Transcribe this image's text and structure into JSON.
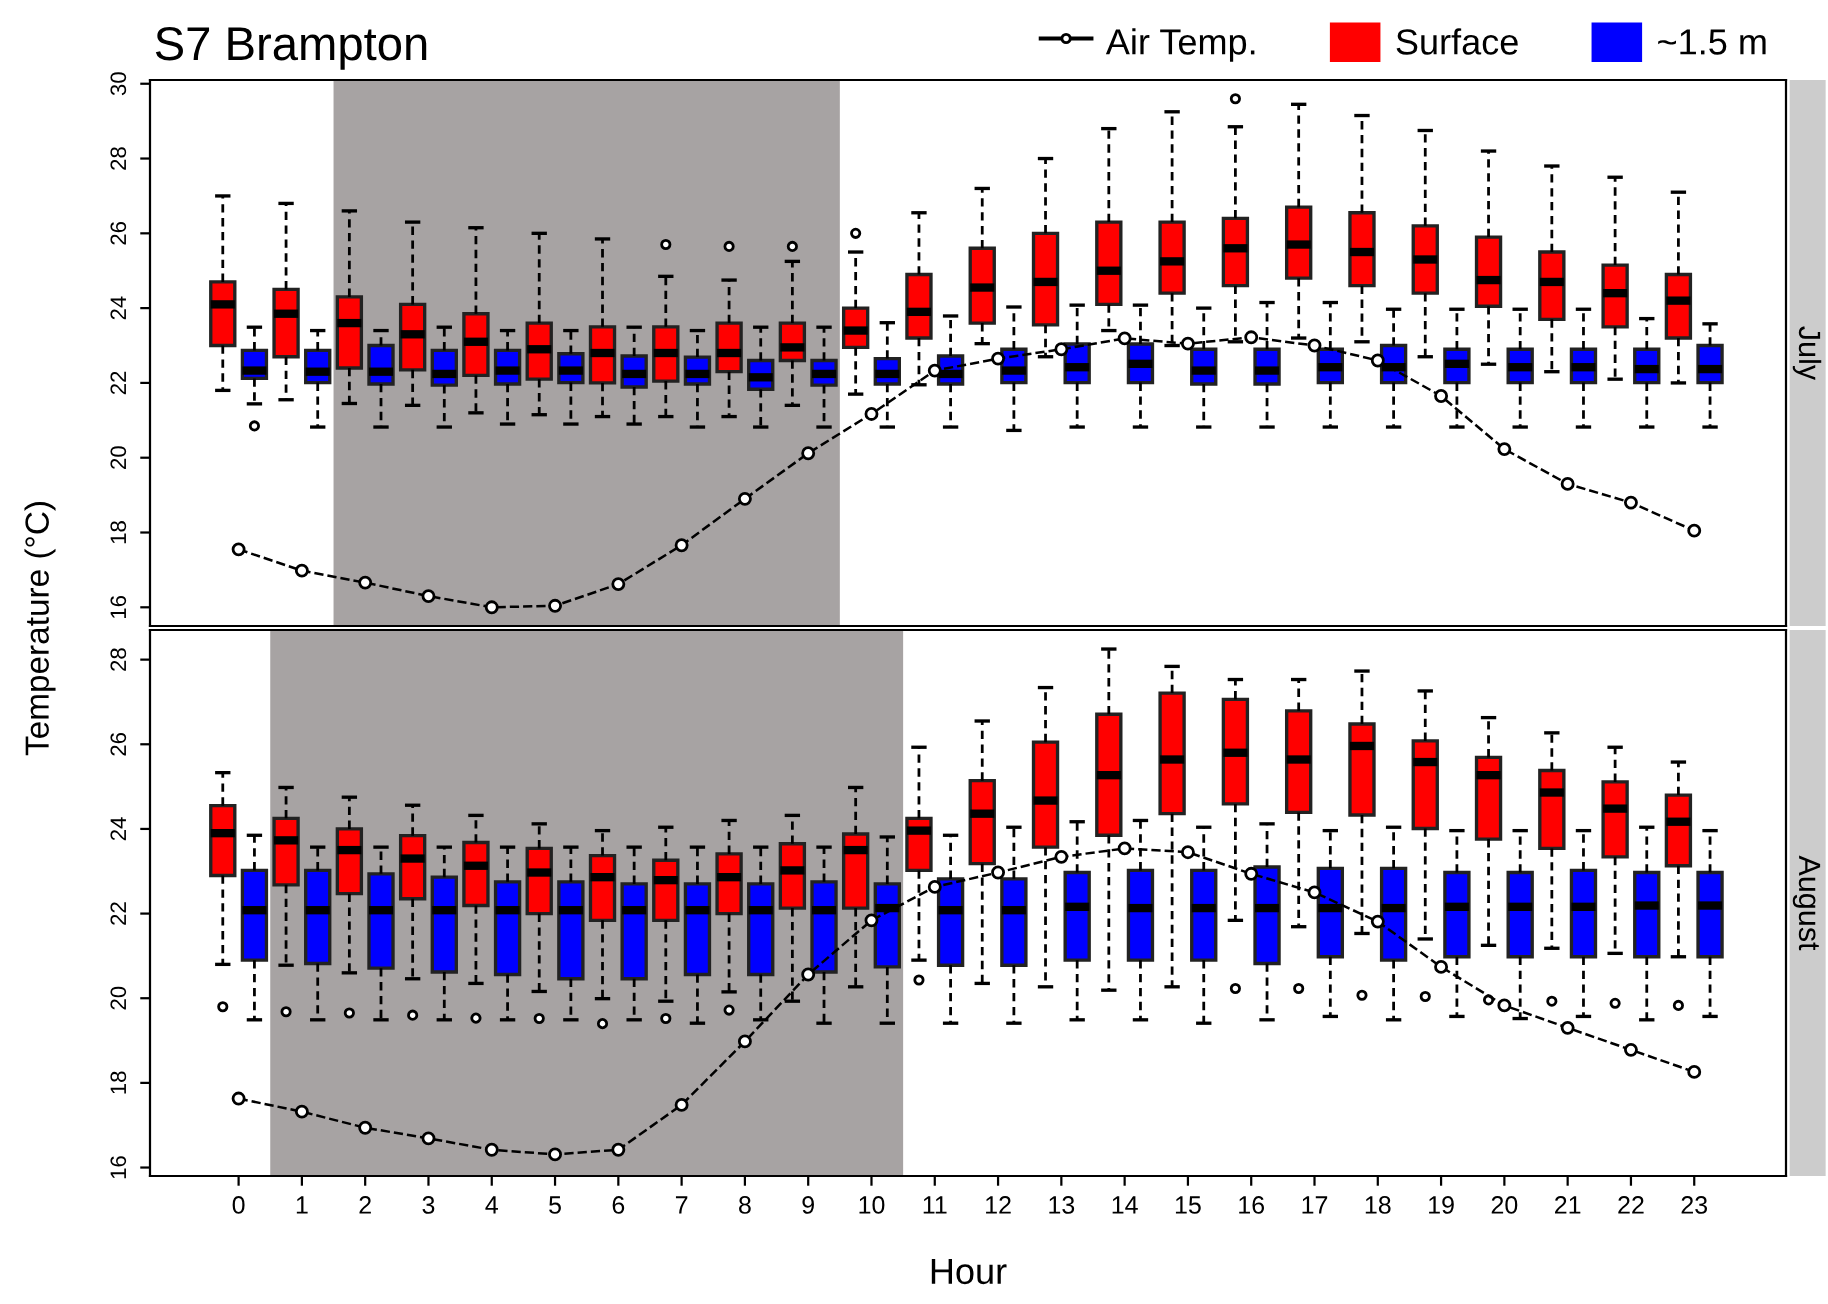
{
  "chart_data": [
    {
      "type": "box",
      "title": "S7 Brampton",
      "subtitle": "July",
      "ylabel": "Temperature (°C)",
      "x": [
        0,
        1,
        2,
        3,
        4,
        5,
        6,
        7,
        8,
        9,
        10,
        11,
        12,
        13,
        14,
        15,
        16,
        17,
        18,
        19,
        20,
        21,
        22,
        23
      ],
      "xlim": [
        -1.4,
        24.45
      ],
      "xticks": [
        0,
        1,
        2,
        3,
        4,
        5,
        6,
        7,
        8,
        9,
        10,
        11,
        12,
        13,
        14,
        15,
        16,
        17,
        18,
        19,
        20,
        21,
        22,
        23
      ],
      "ylim": [
        15.5,
        30.1
      ],
      "yticks": [
        16,
        18,
        20,
        22,
        24,
        26,
        28,
        30
      ],
      "tick_labels": "y",
      "legend": "top right",
      "bands": [
        {
          "axis": "x",
          "from": 1.5,
          "to": 9.5,
          "color": "#a7a3a3"
        }
      ],
      "series": [
        {
          "name": "Surface",
          "type": "box",
          "color": "#ff0000",
          "boxes": [
            {
              "low": 21.8,
              "q1": 23.0,
              "median": 24.1,
              "q3": 24.7,
              "high": 27.0
            },
            {
              "low": 21.55,
              "q1": 22.7,
              "median": 23.85,
              "q3": 24.5,
              "high": 26.8
            },
            {
              "low": 21.45,
              "q1": 22.4,
              "median": 23.6,
              "q3": 24.3,
              "high": 26.6
            },
            {
              "low": 21.4,
              "q1": 22.35,
              "median": 23.3,
              "q3": 24.1,
              "high": 26.3
            },
            {
              "low": 21.2,
              "q1": 22.2,
              "median": 23.1,
              "q3": 23.85,
              "high": 26.15
            },
            {
              "low": 21.15,
              "q1": 22.1,
              "median": 22.9,
              "q3": 23.6,
              "high": 26.0
            },
            {
              "low": 21.1,
              "q1": 22.0,
              "median": 22.8,
              "q3": 23.5,
              "high": 25.85
            },
            {
              "low": 21.1,
              "q1": 22.05,
              "median": 22.8,
              "q3": 23.5,
              "high": 24.85,
              "outliers": [
                25.7
              ]
            },
            {
              "low": 21.1,
              "q1": 22.3,
              "median": 22.8,
              "q3": 23.6,
              "high": 24.75,
              "outliers": [
                25.65
              ]
            },
            {
              "low": 21.4,
              "q1": 22.6,
              "median": 22.95,
              "q3": 23.6,
              "high": 25.25,
              "outliers": [
                25.65
              ]
            },
            {
              "low": 21.7,
              "q1": 22.95,
              "median": 23.4,
              "q3": 24.0,
              "high": 25.5,
              "outliers": [
                26.0
              ]
            },
            {
              "low": 21.95,
              "q1": 23.2,
              "median": 23.9,
              "q3": 24.9,
              "high": 26.55
            },
            {
              "low": 23.05,
              "q1": 23.6,
              "median": 24.55,
              "q3": 25.6,
              "high": 27.2
            },
            {
              "low": 22.7,
              "q1": 23.55,
              "median": 24.7,
              "q3": 26.0,
              "high": 28.0
            },
            {
              "low": 23.4,
              "q1": 24.1,
              "median": 25.0,
              "q3": 26.3,
              "high": 28.8
            },
            {
              "low": 23.0,
              "q1": 24.4,
              "median": 25.25,
              "q3": 26.3,
              "high": 29.25
            },
            {
              "low": 23.1,
              "q1": 24.6,
              "median": 25.6,
              "q3": 26.4,
              "high": 28.85,
              "outliers": [
                29.6
              ]
            },
            {
              "low": 23.2,
              "q1": 24.8,
              "median": 25.7,
              "q3": 26.7,
              "high": 29.45
            },
            {
              "low": 23.1,
              "q1": 24.6,
              "median": 25.5,
              "q3": 26.55,
              "high": 29.15
            },
            {
              "low": 22.7,
              "q1": 24.4,
              "median": 25.3,
              "q3": 26.2,
              "high": 28.75
            },
            {
              "low": 22.5,
              "q1": 24.05,
              "median": 24.75,
              "q3": 25.9,
              "high": 28.2
            },
            {
              "low": 22.3,
              "q1": 23.7,
              "median": 24.7,
              "q3": 25.5,
              "high": 27.8
            },
            {
              "low": 22.1,
              "q1": 23.5,
              "median": 24.4,
              "q3": 25.15,
              "high": 27.5
            },
            {
              "low": 22.0,
              "q1": 23.2,
              "median": 24.2,
              "q3": 24.9,
              "high": 27.1
            }
          ]
        },
        {
          "name": "~1.5 m",
          "type": "box",
          "color": "#0000ff",
          "boxes": [
            {
              "low": 21.44,
              "q1": 22.12,
              "median": 22.33,
              "q3": 22.87,
              "high": 23.49,
              "outliers": [
                20.85
              ]
            },
            {
              "low": 20.82,
              "q1": 22.01,
              "median": 22.3,
              "q3": 22.87,
              "high": 23.4
            },
            {
              "low": 20.82,
              "q1": 21.97,
              "median": 22.3,
              "q3": 23.0,
              "high": 23.4
            },
            {
              "low": 20.82,
              "q1": 21.94,
              "median": 22.24,
              "q3": 22.87,
              "high": 23.49
            },
            {
              "low": 20.9,
              "q1": 21.97,
              "median": 22.33,
              "q3": 22.87,
              "high": 23.4
            },
            {
              "low": 20.9,
              "q1": 22.01,
              "median": 22.33,
              "q3": 22.78,
              "high": 23.4
            },
            {
              "low": 20.9,
              "q1": 21.89,
              "median": 22.24,
              "q3": 22.72,
              "high": 23.49
            },
            {
              "low": 20.82,
              "q1": 21.97,
              "median": 22.24,
              "q3": 22.69,
              "high": 23.4
            },
            {
              "low": 20.82,
              "q1": 21.83,
              "median": 22.15,
              "q3": 22.6,
              "high": 23.49
            },
            {
              "low": 20.82,
              "q1": 21.94,
              "median": 22.24,
              "q3": 22.6,
              "high": 23.49
            },
            {
              "low": 20.82,
              "q1": 21.97,
              "median": 22.24,
              "q3": 22.65,
              "high": 23.61
            },
            {
              "low": 20.82,
              "q1": 21.97,
              "median": 22.24,
              "q3": 22.72,
              "high": 23.79
            },
            {
              "low": 20.73,
              "q1": 22.01,
              "median": 22.33,
              "q3": 22.9,
              "high": 24.03
            },
            {
              "low": 20.82,
              "q1": 22.01,
              "median": 22.42,
              "q3": 23.04,
              "high": 24.08
            },
            {
              "low": 20.82,
              "q1": 22.01,
              "median": 22.51,
              "q3": 23.04,
              "high": 24.08
            },
            {
              "low": 20.82,
              "q1": 21.97,
              "median": 22.33,
              "q3": 22.9,
              "high": 24.0
            },
            {
              "low": 20.82,
              "q1": 21.97,
              "median": 22.33,
              "q3": 22.9,
              "high": 24.15
            },
            {
              "low": 20.82,
              "q1": 22.01,
              "median": 22.42,
              "q3": 22.9,
              "high": 24.15
            },
            {
              "low": 20.82,
              "q1": 22.01,
              "median": 22.42,
              "q3": 23.0,
              "high": 23.97
            },
            {
              "low": 20.82,
              "q1": 22.01,
              "median": 22.51,
              "q3": 22.9,
              "high": 23.97
            },
            {
              "low": 20.82,
              "q1": 22.01,
              "median": 22.42,
              "q3": 22.9,
              "high": 23.97
            },
            {
              "low": 20.82,
              "q1": 22.01,
              "median": 22.42,
              "q3": 22.9,
              "high": 23.97
            },
            {
              "low": 20.82,
              "q1": 22.01,
              "median": 22.37,
              "q3": 22.9,
              "high": 23.72
            },
            {
              "low": 20.82,
              "q1": 22.01,
              "median": 22.37,
              "q3": 23.0,
              "high": 23.58
            }
          ]
        },
        {
          "name": "Air Temp.",
          "type": "line",
          "color": "#000000",
          "marker": "circle",
          "line_style": "dashed",
          "values": [
            17.55,
            16.98,
            16.66,
            16.3,
            16.0,
            16.04,
            16.62,
            17.66,
            18.9,
            20.12,
            21.17,
            22.33,
            22.65,
            22.9,
            23.19,
            23.05,
            23.22,
            23.0,
            22.6,
            21.65,
            20.23,
            19.3,
            18.8,
            18.05
          ]
        }
      ]
    },
    {
      "type": "box",
      "subtitle": "August",
      "xlabel": "Hour",
      "x": [
        0,
        1,
        2,
        3,
        4,
        5,
        6,
        7,
        8,
        9,
        10,
        11,
        12,
        13,
        14,
        15,
        16,
        17,
        18,
        19,
        20,
        21,
        22,
        23
      ],
      "xlim": [
        -1.4,
        24.45
      ],
      "xticks": [
        0,
        1,
        2,
        3,
        4,
        5,
        6,
        7,
        8,
        9,
        10,
        11,
        12,
        13,
        14,
        15,
        16,
        17,
        18,
        19,
        20,
        21,
        22,
        23
      ],
      "ylim": [
        15.8,
        28.7
      ],
      "yticks": [
        16,
        18,
        20,
        22,
        24,
        26,
        28
      ],
      "bands": [
        {
          "axis": "x",
          "from": 0.5,
          "to": 10.5,
          "color": "#a7a3a3"
        }
      ],
      "series": [
        {
          "type": "box",
          "color": "#ff0000",
          "boxes": [
            {
              "low": 20.8,
              "q1": 22.9,
              "median": 23.9,
              "q3": 24.55,
              "high": 25.33,
              "outliers": [
                19.8
              ]
            },
            {
              "low": 20.78,
              "q1": 22.68,
              "median": 23.73,
              "q3": 24.25,
              "high": 24.98,
              "outliers": [
                19.68
              ]
            },
            {
              "low": 20.6,
              "q1": 22.47,
              "median": 23.5,
              "q3": 24.0,
              "high": 24.75,
              "outliers": [
                19.65
              ]
            },
            {
              "low": 20.46,
              "q1": 22.35,
              "median": 23.3,
              "q3": 23.84,
              "high": 24.56,
              "outliers": [
                19.6
              ]
            },
            {
              "low": 20.35,
              "q1": 22.19,
              "median": 23.13,
              "q3": 23.68,
              "high": 24.32,
              "outliers": [
                19.53
              ]
            },
            {
              "low": 20.16,
              "q1": 22.0,
              "median": 22.97,
              "q3": 23.54,
              "high": 24.12,
              "outliers": [
                19.52
              ]
            },
            {
              "low": 19.99,
              "q1": 21.84,
              "median": 22.86,
              "q3": 23.37,
              "high": 23.96,
              "outliers": [
                19.4
              ]
            },
            {
              "low": 19.93,
              "q1": 21.84,
              "median": 22.79,
              "q3": 23.26,
              "high": 24.04,
              "outliers": [
                19.52
              ]
            },
            {
              "low": 20.15,
              "q1": 22.0,
              "median": 22.86,
              "q3": 23.41,
              "high": 24.2,
              "outliers": [
                19.72
              ]
            },
            {
              "low": 19.93,
              "q1": 22.13,
              "median": 23.02,
              "q3": 23.65,
              "high": 24.32
            },
            {
              "low": 20.27,
              "q1": 22.13,
              "median": 23.5,
              "q3": 23.88,
              "high": 24.98
            },
            {
              "low": 20.9,
              "q1": 23.02,
              "median": 23.96,
              "q3": 24.25,
              "high": 25.93,
              "outliers": [
                20.43
              ]
            },
            {
              "low": 20.35,
              "q1": 23.18,
              "median": 24.36,
              "q3": 25.14,
              "high": 26.55
            },
            {
              "low": 20.27,
              "q1": 23.57,
              "median": 24.67,
              "q3": 26.05,
              "high": 27.34
            },
            {
              "low": 20.19,
              "q1": 23.85,
              "median": 25.27,
              "q3": 26.71,
              "high": 28.25
            },
            {
              "low": 20.27,
              "q1": 24.36,
              "median": 25.64,
              "q3": 27.21,
              "high": 27.84
            },
            {
              "low": 21.84,
              "q1": 24.59,
              "median": 25.8,
              "q3": 27.06,
              "high": 27.53,
              "outliers": [
                20.23
              ]
            },
            {
              "low": 21.69,
              "q1": 24.39,
              "median": 25.64,
              "q3": 26.79,
              "high": 27.53,
              "outliers": [
                20.23
              ]
            },
            {
              "low": 21.53,
              "q1": 24.33,
              "median": 25.96,
              "q3": 26.48,
              "high": 27.73,
              "outliers": [
                20.07
              ]
            },
            {
              "low": 21.4,
              "q1": 24.01,
              "median": 25.58,
              "q3": 26.08,
              "high": 27.26,
              "outliers": [
                20.04
              ]
            },
            {
              "low": 21.25,
              "q1": 23.76,
              "median": 25.27,
              "q3": 25.69,
              "high": 26.63,
              "outliers": [
                19.96
              ]
            },
            {
              "low": 21.18,
              "q1": 23.54,
              "median": 24.86,
              "q3": 25.38,
              "high": 26.27,
              "outliers": [
                19.93
              ]
            },
            {
              "low": 21.06,
              "q1": 23.34,
              "median": 24.48,
              "q3": 25.11,
              "high": 25.93,
              "outliers": [
                19.88
              ]
            },
            {
              "low": 20.98,
              "q1": 23.13,
              "median": 24.17,
              "q3": 24.8,
              "high": 25.58,
              "outliers": [
                19.83
              ]
            }
          ]
        },
        {
          "type": "box",
          "color": "#0000ff",
          "boxes": [
            {
              "low": 19.49,
              "q1": 20.9,
              "median": 22.08,
              "q3": 23.02,
              "high": 23.85
            },
            {
              "low": 19.49,
              "q1": 20.82,
              "median": 22.08,
              "q3": 23.02,
              "high": 23.57
            },
            {
              "low": 19.49,
              "q1": 20.71,
              "median": 22.08,
              "q3": 22.94,
              "high": 23.57
            },
            {
              "low": 19.49,
              "q1": 20.62,
              "median": 22.08,
              "q3": 22.86,
              "high": 23.57
            },
            {
              "low": 19.49,
              "q1": 20.56,
              "median": 22.08,
              "q3": 22.75,
              "high": 23.57
            },
            {
              "low": 19.49,
              "q1": 20.46,
              "median": 22.08,
              "q3": 22.75,
              "high": 23.57
            },
            {
              "low": 19.49,
              "q1": 20.46,
              "median": 22.08,
              "q3": 22.7,
              "high": 23.57
            },
            {
              "low": 19.41,
              "q1": 20.56,
              "median": 22.08,
              "q3": 22.7,
              "high": 23.57
            },
            {
              "low": 19.49,
              "q1": 20.56,
              "median": 22.08,
              "q3": 22.7,
              "high": 23.57
            },
            {
              "low": 19.41,
              "q1": 20.62,
              "median": 22.08,
              "q3": 22.75,
              "high": 23.57
            },
            {
              "low": 19.41,
              "q1": 20.74,
              "median": 22.13,
              "q3": 22.7,
              "high": 23.81
            },
            {
              "low": 19.41,
              "q1": 20.78,
              "median": 22.08,
              "q3": 22.82,
              "high": 23.85
            },
            {
              "low": 19.41,
              "q1": 20.78,
              "median": 22.08,
              "q3": 22.82,
              "high": 24.04
            },
            {
              "low": 19.49,
              "q1": 20.9,
              "median": 22.16,
              "q3": 22.97,
              "high": 24.17
            },
            {
              "low": 19.49,
              "q1": 20.9,
              "median": 22.13,
              "q3": 23.02,
              "high": 24.2
            },
            {
              "low": 19.41,
              "q1": 20.9,
              "median": 22.13,
              "q3": 23.02,
              "high": 24.04
            },
            {
              "low": 19.49,
              "q1": 20.82,
              "median": 22.13,
              "q3": 23.1,
              "high": 24.12
            },
            {
              "low": 19.57,
              "q1": 20.98,
              "median": 22.13,
              "q3": 23.07,
              "high": 23.96
            },
            {
              "low": 19.49,
              "q1": 20.9,
              "median": 22.13,
              "q3": 23.07,
              "high": 24.04
            },
            {
              "low": 19.57,
              "q1": 20.98,
              "median": 22.16,
              "q3": 22.97,
              "high": 23.96
            },
            {
              "low": 19.52,
              "q1": 20.98,
              "median": 22.16,
              "q3": 22.97,
              "high": 23.96
            },
            {
              "low": 19.57,
              "q1": 20.98,
              "median": 22.16,
              "q3": 23.02,
              "high": 23.96
            },
            {
              "low": 19.49,
              "q1": 20.98,
              "median": 22.19,
              "q3": 22.97,
              "high": 24.04
            },
            {
              "low": 19.57,
              "q1": 20.98,
              "median": 22.19,
              "q3": 22.97,
              "high": 23.96
            }
          ]
        },
        {
          "type": "line",
          "color": "#000000",
          "marker": "circle",
          "line_style": "dashed",
          "values": [
            17.63,
            17.32,
            16.94,
            16.69,
            16.42,
            16.31,
            16.42,
            17.48,
            18.98,
            20.56,
            21.84,
            22.63,
            22.97,
            23.34,
            23.54,
            23.45,
            22.94,
            22.5,
            21.81,
            20.74,
            19.83,
            19.3,
            18.78,
            18.26
          ]
        }
      ]
    }
  ]
}
